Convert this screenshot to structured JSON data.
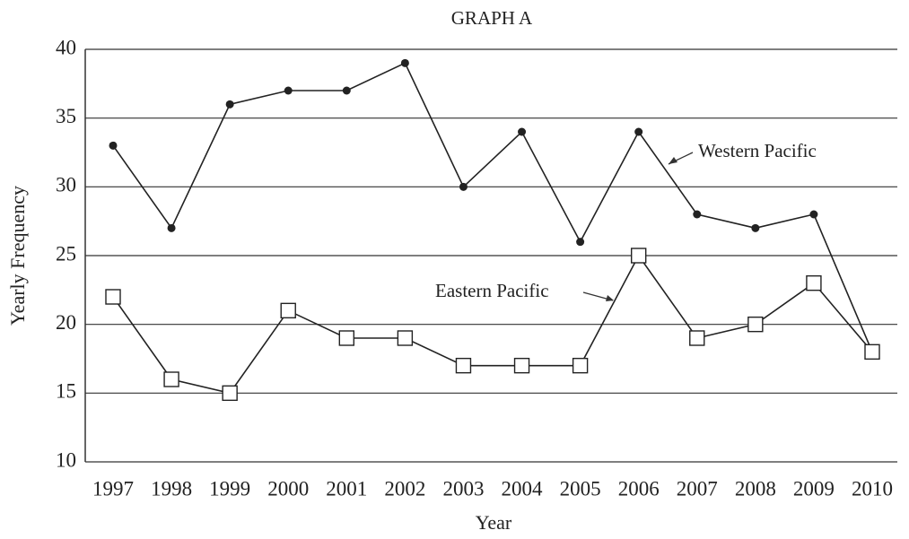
{
  "chart_data": {
    "type": "line",
    "title": "GRAPH A",
    "x_label": "Year",
    "y_label": "Yearly Frequency",
    "categories": [
      "1997",
      "1998",
      "1999",
      "2000",
      "2001",
      "2002",
      "2003",
      "2004",
      "2005",
      "2006",
      "2007",
      "2008",
      "2009",
      "2010"
    ],
    "series": [
      {
        "name": "Western Pacific",
        "color": "#222222",
        "marker": "dot",
        "values": [
          33,
          27,
          36,
          37,
          37,
          39,
          30,
          34,
          26,
          34,
          28,
          27,
          28,
          18
        ]
      },
      {
        "name": "Eastern Pacific",
        "color": "#222222",
        "marker": "square",
        "values": [
          22,
          16,
          15,
          21,
          19,
          19,
          17,
          17,
          17,
          25,
          19,
          20,
          23,
          18
        ]
      }
    ],
    "ylim": [
      10,
      40
    ],
    "yticks": [
      10,
      15,
      20,
      25,
      30,
      35,
      40
    ],
    "grid": true
  }
}
